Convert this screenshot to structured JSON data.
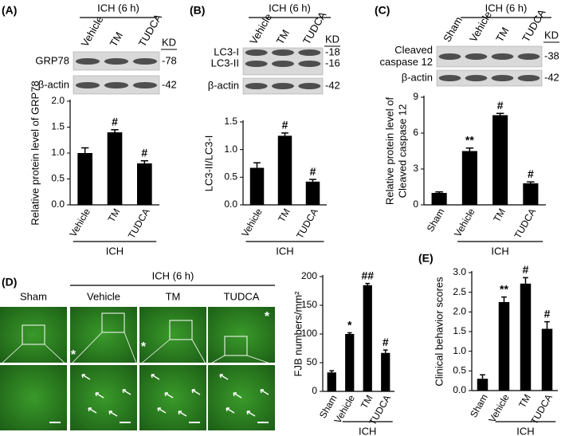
{
  "chart_data": [
    {
      "type": "bar",
      "panel_label": "(A)",
      "ylabel": [
        "Relative protein level of GRP78"
      ],
      "categories": [
        "Vehicle",
        "TM",
        "TUDCA"
      ],
      "values": [
        1.0,
        1.4,
        0.8
      ],
      "errors": [
        0.1,
        0.05,
        0.05
      ],
      "annotations": [
        null,
        "#",
        "#"
      ],
      "color": "#000000",
      "ylim": [
        0,
        2.0
      ],
      "yticks": [
        {
          "value": 0,
          "label": "0.0"
        },
        0.5,
        {
          "value": 1,
          "label": "1.0"
        },
        1.5,
        {
          "value": 2,
          "label": "2.0"
        }
      ],
      "group_label": "ICH",
      "blot": {
        "header": "ICH (6 h)",
        "lanes": [
          "Vehicle",
          "TM",
          "TUDCA"
        ],
        "kd_title": "KD",
        "rows": [
          {
            "label": [
              "GRP78"
            ],
            "kd": "-78"
          },
          {
            "label": [
              "β-actin"
            ],
            "kd": "-42"
          }
        ]
      }
    },
    {
      "type": "bar",
      "panel_label": "(B)",
      "ylabel": [
        "LC3-II/LC3-I"
      ],
      "categories": [
        "Vehicle",
        "TM",
        "TUDCA"
      ],
      "values": [
        0.67,
        1.25,
        0.42
      ],
      "errors": [
        0.09,
        0.05,
        0.04
      ],
      "annotations": [
        null,
        "#",
        "#"
      ],
      "color": "#000000",
      "ylim": [
        0,
        1.5
      ],
      "yticks": [
        {
          "value": 0,
          "label": "0.0"
        },
        0.5,
        {
          "value": 1,
          "label": "1.0"
        },
        1.5
      ],
      "group_label": "ICH",
      "blot": {
        "header": "ICH (6 h)",
        "lanes": [
          "Vehicle",
          "TM",
          "TUDCA"
        ],
        "kd_title": "KD",
        "rows": [
          {
            "label": [
              "LC3-I"
            ],
            "kd": "-18"
          },
          {
            "label": [
              "LC3-II"
            ],
            "kd": "-16"
          },
          {
            "label": [
              "β-actin"
            ],
            "kd": "-42"
          }
        ]
      }
    },
    {
      "type": "bar",
      "panel_label": "(C)",
      "ylabel": [
        "Relative protein level of",
        "Cleaved caspase 12"
      ],
      "categories": [
        "Sham",
        "Vehicle",
        "TM",
        "TUDCA"
      ],
      "values": [
        1.0,
        4.5,
        7.5,
        1.8
      ],
      "errors": [
        0.08,
        0.25,
        0.15,
        0.12
      ],
      "annotations": [
        null,
        "**",
        "#",
        "#"
      ],
      "color": "#000000",
      "ylim": [
        0,
        9
      ],
      "yticks": [
        0,
        3,
        6,
        9
      ],
      "group_label": "ICH",
      "blot": {
        "header": "ICH (6 h)",
        "lanes": [
          "Sham",
          "Vehicle",
          "TM",
          "TUDCA"
        ],
        "kd_title": "KD",
        "rows": [
          {
            "label": [
              "Cleaved",
              "caspase 12"
            ],
            "kd": "-38"
          },
          {
            "label": [
              "β-actin"
            ],
            "kd": "-42"
          }
        ]
      }
    },
    {
      "type": "bar",
      "panel_label": "(D)",
      "ylabel": [
        "FJB numbers/mm²"
      ],
      "categories": [
        "Sham",
        "Vehicle",
        "TM",
        "TUDCA"
      ],
      "values": [
        33,
        100,
        185,
        67
      ],
      "errors": [
        3,
        2,
        3,
        5
      ],
      "annotations": [
        null,
        "*",
        "##",
        "#"
      ],
      "color": "#000000",
      "ylim": [
        0,
        200
      ],
      "yticks": [
        0,
        50,
        100,
        150,
        200
      ],
      "group_label": "ICH",
      "image_panel": {
        "header": "ICH (6 h)",
        "columns": [
          "Sham",
          "Vehicle",
          "TM",
          "TUDCA"
        ],
        "marker": "*"
      }
    },
    {
      "type": "bar",
      "panel_label": "(E)",
      "ylabel": [
        "Clinical behavior scores"
      ],
      "categories": [
        "Sham",
        "Vehicle",
        "TM",
        "TUDCA"
      ],
      "values": [
        0.3,
        2.25,
        2.72,
        1.57
      ],
      "errors": [
        0.1,
        0.13,
        0.15,
        0.18
      ],
      "annotations": [
        null,
        "**",
        "#",
        "#"
      ],
      "color": "#000000",
      "ylim": [
        0,
        3.0
      ],
      "yticks": [
        {
          "value": 0,
          "label": "0.0"
        },
        0.5,
        {
          "value": 1,
          "label": "1.0"
        },
        1.5,
        {
          "value": 2,
          "label": "2.0"
        },
        2.5,
        {
          "value": 3,
          "label": "3.0"
        }
      ],
      "group_label": "ICH"
    }
  ]
}
